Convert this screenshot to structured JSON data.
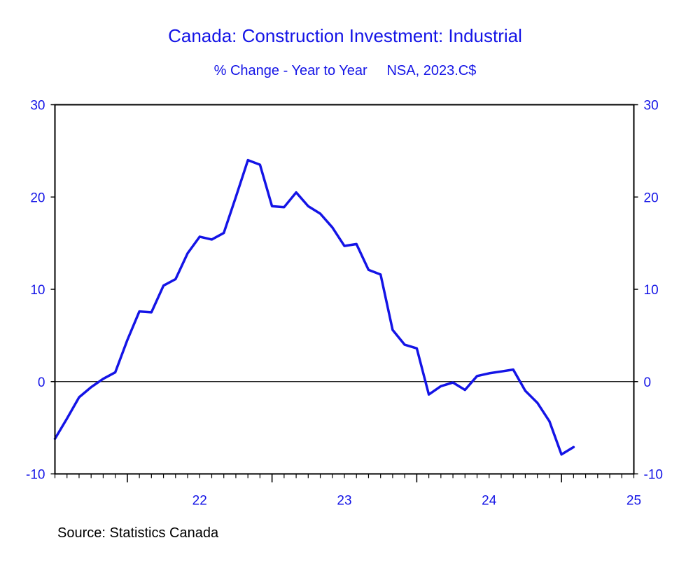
{
  "chart_data": {
    "type": "line",
    "title": "Canada: Construction Investment: Industrial",
    "subtitle": "% Change - Year to Year     NSA, 2023.C$",
    "source": "Source:  Statistics Canada",
    "xlabel": "",
    "ylabel": "",
    "ylim": [
      -10,
      30
    ],
    "y_ticks": [
      -10,
      0,
      10,
      20,
      30
    ],
    "y_tick_labels": [
      "-10",
      "0",
      "10",
      "20",
      "30"
    ],
    "x_tick_labels": [
      "22",
      "23",
      "24",
      "25"
    ],
    "x_tick_years": [
      2022,
      2023,
      2024,
      2025
    ],
    "x_start": "2021-07",
    "x_end": "2025-07",
    "grid": false,
    "zero_line": true,
    "colors": {
      "series": "#1414e6",
      "text": "#1414e6",
      "axis": "#000000"
    },
    "series": [
      {
        "name": "",
        "x": [
          "2021-07",
          "2021-08",
          "2021-09",
          "2021-10",
          "2021-11",
          "2021-12",
          "2022-01",
          "2022-02",
          "2022-03",
          "2022-04",
          "2022-05",
          "2022-06",
          "2022-07",
          "2022-08",
          "2022-09",
          "2022-10",
          "2022-11",
          "2022-12",
          "2023-01",
          "2023-02",
          "2023-03",
          "2023-04",
          "2023-05",
          "2023-06",
          "2023-07",
          "2023-08",
          "2023-09",
          "2023-10",
          "2023-11",
          "2023-12",
          "2024-01",
          "2024-02",
          "2024-03",
          "2024-04",
          "2024-05",
          "2024-06",
          "2024-07",
          "2024-08",
          "2024-09",
          "2024-10",
          "2024-11",
          "2024-12",
          "2025-01",
          "2025-02"
        ],
        "values": [
          -6.2,
          -4.0,
          -1.7,
          -0.6,
          0.3,
          1.0,
          4.5,
          7.6,
          7.5,
          10.4,
          11.1,
          13.9,
          15.7,
          15.4,
          16.1,
          20.0,
          24.0,
          23.5,
          19.0,
          18.9,
          20.5,
          19.0,
          18.2,
          16.7,
          14.7,
          14.9,
          12.1,
          11.6,
          5.6,
          4.0,
          3.6,
          -1.4,
          -0.5,
          -0.1,
          -0.9,
          0.6,
          0.9,
          1.1,
          1.3,
          -1.0,
          -2.3,
          -4.3,
          -7.9,
          -7.1
        ]
      }
    ]
  }
}
